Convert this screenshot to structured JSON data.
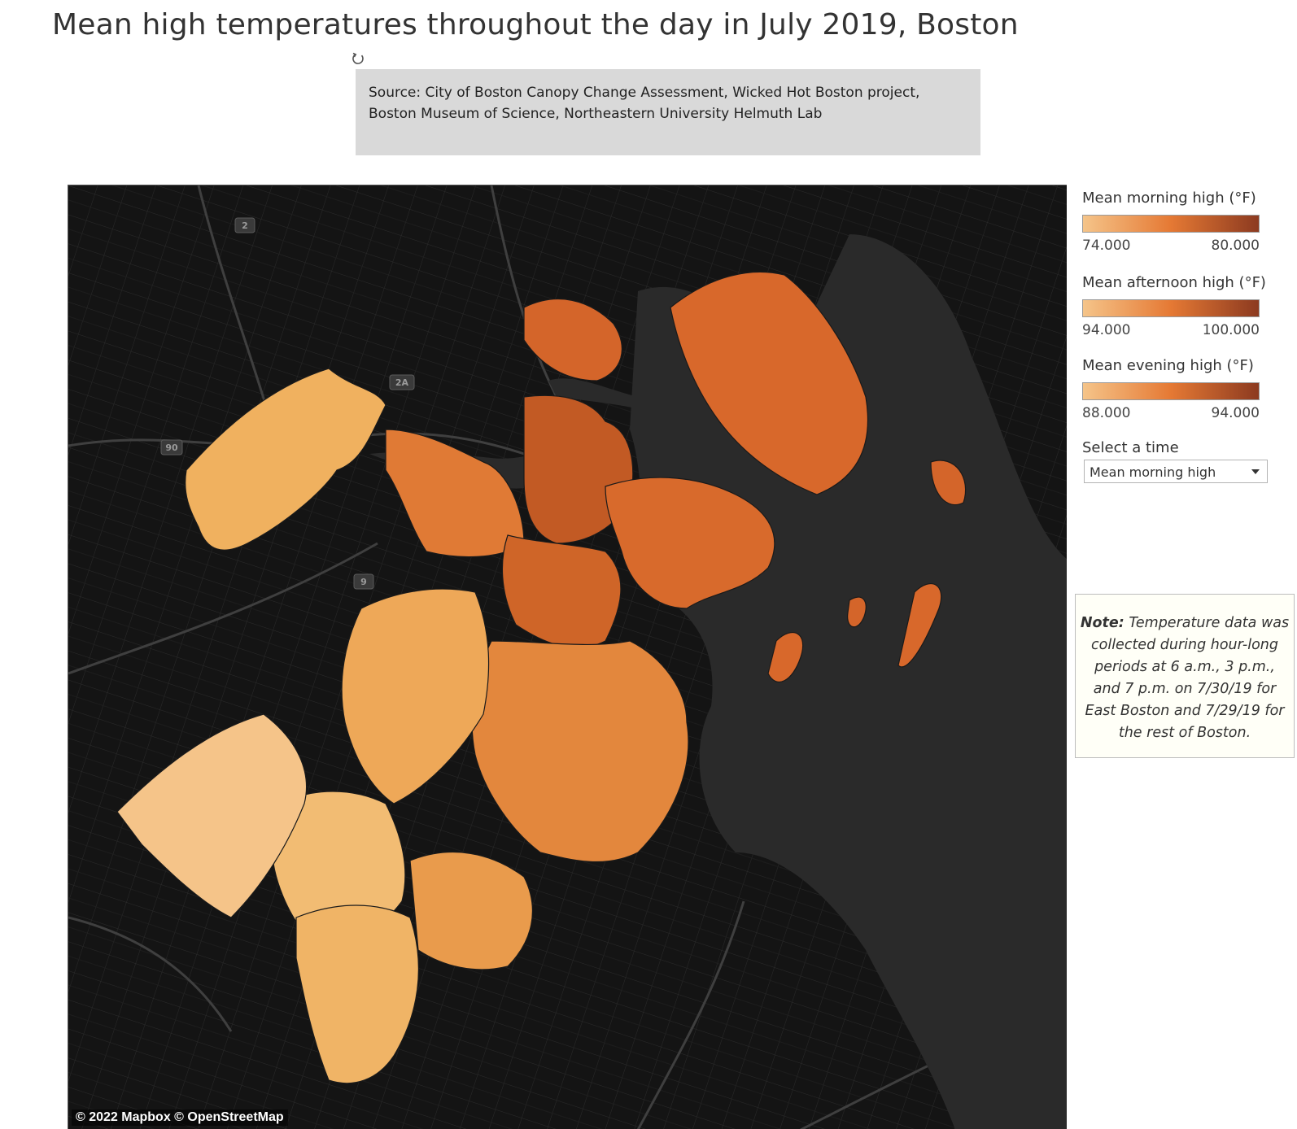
{
  "title": "Mean high temperatures throughout the day in July 2019, Boston",
  "revert_icon": "revert-icon",
  "source_text": "Source: City of Boston Canopy Change Assessment, Wicked Hot Boston project, Boston Museum of Science, Northeastern University Helmuth Lab",
  "map": {
    "attribution": "© 2022 Mapbox  © OpenStreetMap",
    "highway_shields": [
      "2",
      "2A",
      "90",
      "9"
    ],
    "background_color": "#121212",
    "water_color": "#2a2a2a"
  },
  "legends": [
    {
      "title": "Mean morning high (°F)",
      "min": "74.000",
      "max": "80.000",
      "color_low": "#f5c489",
      "color_mid": "#e57934",
      "color_high": "#8c3a20"
    },
    {
      "title": "Mean afternoon high (°F)",
      "min": "94.000",
      "max": "100.000",
      "color_low": "#f5c489",
      "color_mid": "#e57934",
      "color_high": "#8c3a20"
    },
    {
      "title": "Mean evening high (°F)",
      "min": "88.000",
      "max": "94.000",
      "color_low": "#f5c489",
      "color_mid": "#e57934",
      "color_high": "#8c3a20"
    }
  ],
  "selector": {
    "label": "Select a time",
    "value": "Mean morning high"
  },
  "note": {
    "lead": "Note:",
    "text": "Temperature data was collected during hour-long periods at 6 a.m., 3 p.m., and 7 p.m. on 7/30/19 for East Boston and 7/29/19 for the rest of Boston."
  }
}
